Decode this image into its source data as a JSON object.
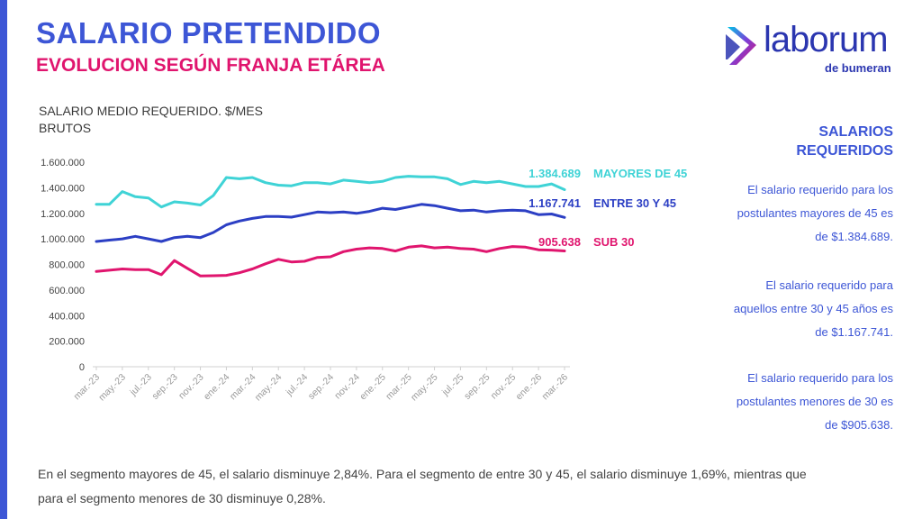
{
  "header": {
    "title": "SALARIO PRETENDIDO",
    "subtitle": "EVOLUCION SEGÚN FRANJA ETÁREA"
  },
  "logo": {
    "wordmark": "laborum",
    "tagline": "de bumeran"
  },
  "colors": {
    "accent_blue": "#3d56d6",
    "accent_pink": "#e0156e",
    "series_mayores": "#3fd3d6",
    "series_entre": "#2c3fc4",
    "series_sub": "#e0156e"
  },
  "chart_data": {
    "type": "line",
    "title": "SALARIO MEDIO REQUERIDO. $/MES BRUTOS",
    "ylim": [
      0,
      1600000
    ],
    "yticks": [
      0,
      200000,
      400000,
      600000,
      800000,
      1000000,
      1200000,
      1400000,
      1600000
    ],
    "ytick_labels": [
      "0",
      "200.000",
      "400.000",
      "600.000",
      "800.000",
      "1.000.000",
      "1.200.000",
      "1.400.000",
      "1.600.000"
    ],
    "x": [
      "mar.-23",
      "abr.-23",
      "may.-23",
      "jun.-23",
      "jul.-23",
      "ago.-23",
      "sep.-23",
      "oct.-23",
      "nov.-23",
      "dic.-23",
      "ene.-24",
      "feb.-24",
      "mar.-24",
      "abr.-24",
      "may.-24",
      "jun.-24",
      "jul.-24",
      "ago.-24",
      "sep.-24",
      "oct.-24",
      "nov.-24",
      "dic.-24",
      "ene.-25",
      "feb.-25",
      "mar.-25",
      "abr.-25",
      "may.-25",
      "jun.-25",
      "jul.-25",
      "ago.-25",
      "sep.-25",
      "oct.-25",
      "nov.-25",
      "dic.-25",
      "ene.-26",
      "feb.-26",
      "mar.-26"
    ],
    "xtick_labels": [
      "mar.-23",
      "may.-23",
      "jul.-23",
      "sep.-23",
      "nov.-23",
      "ene.-24",
      "mar.-24",
      "may.-24",
      "jul.-24",
      "sep.-24",
      "nov.-24",
      "ene.-25",
      "mar.-25",
      "may.-25",
      "jul.-25",
      "sep.-25",
      "nov.-25",
      "ene.-26",
      "mar.-26"
    ],
    "series": [
      {
        "name": "MAYORES DE 45",
        "label_value": "1.384.689",
        "color": "#3fd3d6",
        "values": [
          1270000,
          1270000,
          1370000,
          1330000,
          1320000,
          1250000,
          1290000,
          1280000,
          1265000,
          1340000,
          1480000,
          1470000,
          1480000,
          1440000,
          1420000,
          1415000,
          1440000,
          1440000,
          1430000,
          1460000,
          1450000,
          1440000,
          1450000,
          1480000,
          1490000,
          1485000,
          1485000,
          1470000,
          1425000,
          1450000,
          1440000,
          1450000,
          1430000,
          1410000,
          1410000,
          1430000,
          1384689
        ]
      },
      {
        "name": "ENTRE 30 Y 45",
        "label_value": "1.167.741",
        "color": "#2c3fc4",
        "values": [
          980000,
          990000,
          1000000,
          1020000,
          1000000,
          980000,
          1010000,
          1020000,
          1010000,
          1050000,
          1110000,
          1140000,
          1160000,
          1175000,
          1175000,
          1170000,
          1190000,
          1210000,
          1205000,
          1210000,
          1200000,
          1215000,
          1240000,
          1230000,
          1250000,
          1270000,
          1260000,
          1240000,
          1220000,
          1225000,
          1210000,
          1220000,
          1225000,
          1220000,
          1190000,
          1195000,
          1167741
        ]
      },
      {
        "name": "SUB 30",
        "label_value": "905.638",
        "color": "#e0156e",
        "values": [
          745000,
          755000,
          765000,
          760000,
          760000,
          720000,
          830000,
          770000,
          710000,
          712000,
          715000,
          735000,
          765000,
          805000,
          840000,
          820000,
          825000,
          855000,
          860000,
          900000,
          920000,
          930000,
          925000,
          905000,
          935000,
          945000,
          930000,
          935000,
          925000,
          920000,
          900000,
          925000,
          940000,
          935000,
          915000,
          912000,
          905638
        ]
      }
    ]
  },
  "side": {
    "heading_line1": "SALARIOS",
    "heading_line2": "REQUERIDOS",
    "p1_l1": "El salario requerido para los",
    "p1_l2": "postulantes mayores de 45 es",
    "p1_l3": "de $1.384.689.",
    "p2_l1": "El salario requerido para",
    "p2_l2": "aquellos entre 30 y 45 años es",
    "p2_l3": "de $1.167.741.",
    "p3_l1": "El salario requerido para los",
    "p3_l2": "postulantes menores de 30 es",
    "p3_l3": "de $905.638."
  },
  "footer": {
    "line1": "En el segmento mayores de 45, el salario disminuye 2,84%. Para el segmento de entre 30 y 45,  el salario disminuye 1,69%, mientras que",
    "line2": "para el segmento menores de 30 disminuye 0,28%."
  }
}
